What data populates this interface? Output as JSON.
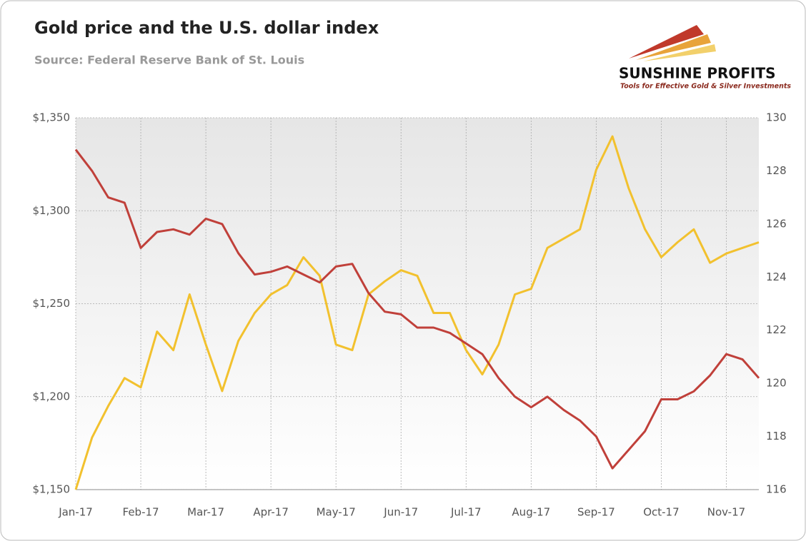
{
  "chart_data": {
    "type": "line",
    "title": "Gold price and the U.S. dollar index",
    "subtitle": "Source: Federal Reserve Bank of St. Louis",
    "logo": {
      "name": "SUNSHINE PROFITS",
      "tagline": "Tools for Effective Gold & Silver Investments"
    },
    "categories": [
      "Jan-17",
      null,
      null,
      null,
      "Feb-17",
      null,
      null,
      null,
      "Mar-17",
      null,
      null,
      null,
      "Apr-17",
      null,
      null,
      null,
      "May-17",
      null,
      null,
      null,
      "Jun-17",
      null,
      null,
      null,
      "Jul-17",
      null,
      null,
      null,
      "Aug-17",
      null,
      null,
      null,
      "Sep-17",
      null,
      null,
      null,
      "Oct-17",
      null,
      null,
      null,
      "Nov-17",
      null,
      null
    ],
    "series": [
      {
        "name": "Gold price",
        "color": "#f2c12e",
        "axis": "y",
        "values": [
          1150,
          1178,
          1195,
          1210,
          1205,
          1235,
          1225,
          1255,
          1228,
          1203,
          1230,
          1245,
          1255,
          1260,
          1275,
          1265,
          1228,
          1225,
          1255,
          1262,
          1268,
          1265,
          1245,
          1245,
          1225,
          1212,
          1228,
          1255,
          1258,
          1280,
          1285,
          1290,
          1322,
          1340,
          1312,
          1290,
          1275,
          1283,
          1290,
          1272,
          1277,
          1280,
          1283
        ]
      },
      {
        "name": "U.S. dollar index",
        "color": "#c0403a",
        "axis": "y2",
        "values": [
          128.8,
          128.0,
          127.0,
          126.8,
          125.1,
          125.7,
          125.8,
          125.6,
          126.2,
          126.0,
          124.9,
          124.1,
          124.2,
          124.4,
          124.1,
          123.8,
          124.4,
          124.5,
          123.4,
          122.7,
          122.6,
          122.1,
          122.1,
          121.9,
          121.5,
          121.1,
          120.2,
          119.5,
          119.1,
          119.5,
          119.0,
          118.6,
          118.0,
          116.8,
          117.5,
          118.2,
          119.4,
          119.4,
          119.7,
          120.3,
          121.1,
          120.9,
          120.2
        ]
      }
    ],
    "ylim": [
      1150,
      1350
    ],
    "yticks": [
      {
        "value": 1150,
        "label": "$1,150"
      },
      {
        "value": 1200,
        "label": "$1,200"
      },
      {
        "value": 1250,
        "label": "$1,250"
      },
      {
        "value": 1300,
        "label": "$1,300"
      },
      {
        "value": 1350,
        "label": "$1,350"
      }
    ],
    "y2lim": [
      116,
      130
    ],
    "y2ticks": [
      116,
      118,
      120,
      122,
      124,
      126,
      128,
      130
    ],
    "grid": true
  }
}
